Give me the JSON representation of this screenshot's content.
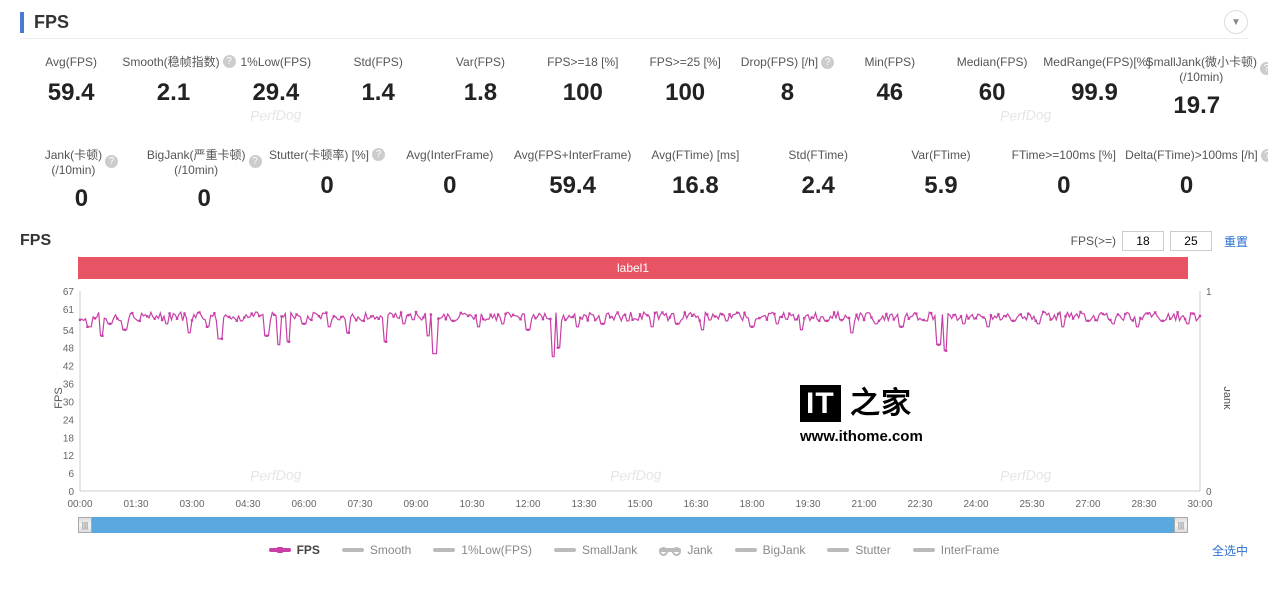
{
  "section": {
    "title": "FPS"
  },
  "metrics_row1": [
    {
      "label": "Avg(FPS)",
      "value": "59.4",
      "help": false
    },
    {
      "label": "Smooth(稳帧指数)",
      "value": "2.1",
      "help": true
    },
    {
      "label": "1%Low(FPS)",
      "value": "29.4",
      "help": false
    },
    {
      "label": "Std(FPS)",
      "value": "1.4",
      "help": false
    },
    {
      "label": "Var(FPS)",
      "value": "1.8",
      "help": false
    },
    {
      "label": "FPS>=18   [%]",
      "value": "100",
      "help": false
    },
    {
      "label": "FPS>=25   [%]",
      "value": "100",
      "help": false
    },
    {
      "label": "Drop(FPS) [/h]",
      "value": "8",
      "help": true
    },
    {
      "label": "Min(FPS)",
      "value": "46",
      "help": false
    },
    {
      "label": "Median(FPS)",
      "value": "60",
      "help": false
    },
    {
      "label": "MedRange(FPS)[%]",
      "value": "99.9",
      "help": false
    },
    {
      "label": "SmallJank(微小卡顿)(/10min)",
      "value": "19.7",
      "help": true
    }
  ],
  "metrics_row2": [
    {
      "label": "Jank(卡顿)(/10min)",
      "value": "0",
      "help": true
    },
    {
      "label": "BigJank(严重卡顿)(/10min)",
      "value": "0",
      "help": true
    },
    {
      "label": "Stutter(卡顿率)  [%]",
      "value": "0",
      "help": true
    },
    {
      "label": "Avg(InterFrame)",
      "value": "0",
      "help": false
    },
    {
      "label": "Avg(FPS+InterFrame)",
      "value": "59.4",
      "help": false
    },
    {
      "label": "Avg(FTime)  [ms]",
      "value": "16.8",
      "help": false
    },
    {
      "label": "Std(FTime)",
      "value": "2.4",
      "help": false
    },
    {
      "label": "Var(FTime)",
      "value": "5.9",
      "help": false
    },
    {
      "label": "FTime>=100ms  [%]",
      "value": "0",
      "help": false
    },
    {
      "label": "Delta(FTime)>100ms [/h]",
      "value": "0",
      "help": true
    }
  ],
  "threshold": {
    "label": "FPS(>=)",
    "v1": "18",
    "v2": "25",
    "reset": "重置"
  },
  "chart": {
    "title": "FPS",
    "full_label": "label1",
    "label_bg": "#e85464",
    "line_color": "#c83fa8",
    "line_width": 1.2,
    "marker_size": 2,
    "background": "#ffffff",
    "grid_color": "#e6e6e6",
    "y_axis_left": {
      "label": "FPS",
      "ticks": [
        0,
        6,
        12,
        18,
        24,
        30,
        36,
        42,
        48,
        54,
        61,
        67
      ],
      "min": 0,
      "max": 67
    },
    "y_axis_right": {
      "label": "Jank",
      "ticks": [
        0,
        1
      ],
      "min": 0,
      "max": 1
    },
    "x_axis": {
      "ticks": [
        "00:00",
        "01:30",
        "03:00",
        "04:30",
        "06:00",
        "07:30",
        "09:00",
        "10:30",
        "12:00",
        "13:30",
        "15:00",
        "16:30",
        "18:00",
        "19:30",
        "21:00",
        "22:30",
        "24:00",
        "25:30",
        "27:00",
        "28:30",
        "30:00"
      ],
      "min_sec": 0,
      "max_sec": 1800
    },
    "fps_series_baseline": 60,
    "fps_dips": [
      {
        "t": 15,
        "v": 55
      },
      {
        "t": 35,
        "v": 52
      },
      {
        "t": 48,
        "v": 56
      },
      {
        "t": 72,
        "v": 54
      },
      {
        "t": 95,
        "v": 57
      },
      {
        "t": 140,
        "v": 56
      },
      {
        "t": 175,
        "v": 53
      },
      {
        "t": 205,
        "v": 55
      },
      {
        "t": 225,
        "v": 51
      },
      {
        "t": 260,
        "v": 57
      },
      {
        "t": 300,
        "v": 52
      },
      {
        "t": 320,
        "v": 49
      },
      {
        "t": 335,
        "v": 50
      },
      {
        "t": 360,
        "v": 56
      },
      {
        "t": 400,
        "v": 55
      },
      {
        "t": 430,
        "v": 53
      },
      {
        "t": 455,
        "v": 57
      },
      {
        "t": 490,
        "v": 50
      },
      {
        "t": 520,
        "v": 56
      },
      {
        "t": 560,
        "v": 52
      },
      {
        "t": 570,
        "v": 46
      },
      {
        "t": 600,
        "v": 57
      },
      {
        "t": 640,
        "v": 55
      },
      {
        "t": 680,
        "v": 56
      },
      {
        "t": 720,
        "v": 54
      },
      {
        "t": 760,
        "v": 45
      },
      {
        "t": 770,
        "v": 48
      },
      {
        "t": 800,
        "v": 55
      },
      {
        "t": 840,
        "v": 56
      },
      {
        "t": 880,
        "v": 57
      },
      {
        "t": 920,
        "v": 55
      },
      {
        "t": 960,
        "v": 56
      },
      {
        "t": 1000,
        "v": 54
      },
      {
        "t": 1040,
        "v": 57
      },
      {
        "t": 1080,
        "v": 55
      },
      {
        "t": 1120,
        "v": 56
      },
      {
        "t": 1160,
        "v": 54
      },
      {
        "t": 1200,
        "v": 57
      },
      {
        "t": 1240,
        "v": 53
      },
      {
        "t": 1280,
        "v": 56
      },
      {
        "t": 1320,
        "v": 55
      },
      {
        "t": 1360,
        "v": 57
      },
      {
        "t": 1380,
        "v": 49
      },
      {
        "t": 1390,
        "v": 47
      },
      {
        "t": 1420,
        "v": 56
      },
      {
        "t": 1460,
        "v": 55
      },
      {
        "t": 1500,
        "v": 57
      },
      {
        "t": 1540,
        "v": 56
      },
      {
        "t": 1580,
        "v": 55
      },
      {
        "t": 1620,
        "v": 57
      },
      {
        "t": 1660,
        "v": 56
      },
      {
        "t": 1700,
        "v": 55
      },
      {
        "t": 1740,
        "v": 57
      },
      {
        "t": 1780,
        "v": 56
      }
    ],
    "jitter_amp": 3
  },
  "scrollbar": {
    "track_color": "#5ba8e0"
  },
  "legend": {
    "items": [
      {
        "label": "FPS",
        "color": "#c83fa8",
        "style": "fps",
        "active": true
      },
      {
        "label": "Smooth",
        "color": "#bbbbbb",
        "style": "line"
      },
      {
        "label": "1%Low(FPS)",
        "color": "#bbbbbb",
        "style": "line"
      },
      {
        "label": "SmallJank",
        "color": "#bbbbbb",
        "style": "line"
      },
      {
        "label": "Jank",
        "color": "#bbbbbb",
        "style": "jank"
      },
      {
        "label": "BigJank",
        "color": "#bbbbbb",
        "style": "line"
      },
      {
        "label": "Stutter",
        "color": "#bbbbbb",
        "style": "line"
      },
      {
        "label": "InterFrame",
        "color": "#bbbbbb",
        "style": "line"
      }
    ],
    "select_all": "全选中"
  },
  "watermarks": {
    "text": "PerfDog"
  },
  "overlay_logo": {
    "line1": "IT 之家",
    "url": "www.ithome.com"
  }
}
